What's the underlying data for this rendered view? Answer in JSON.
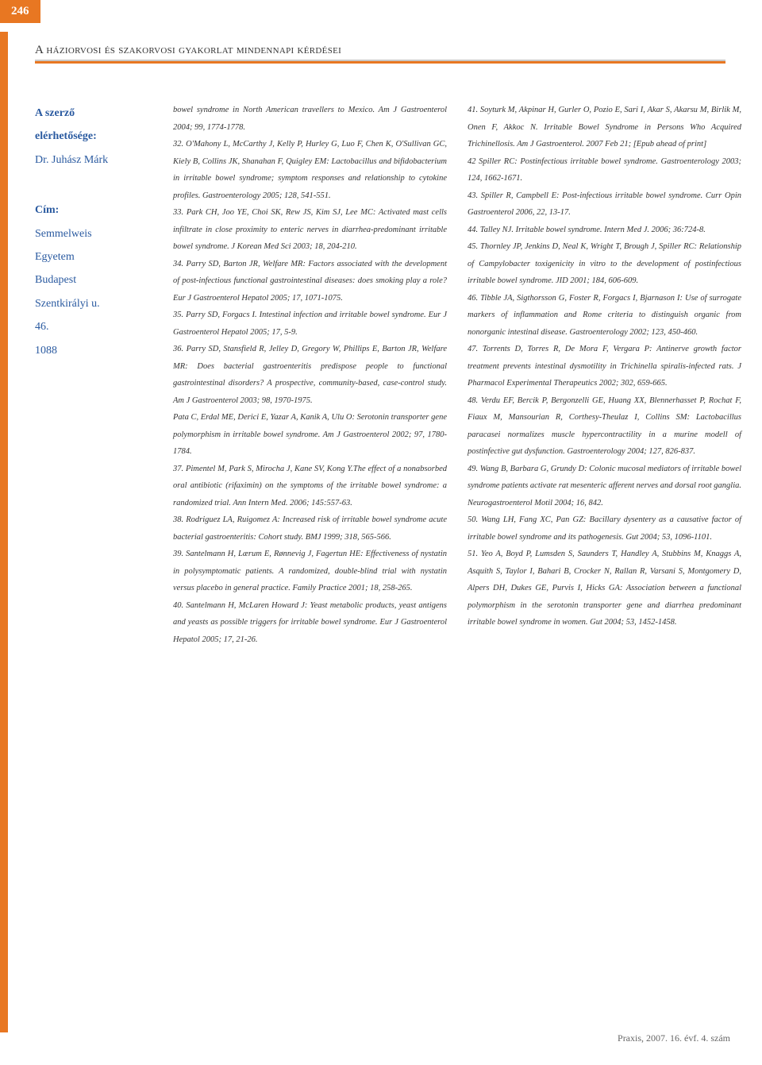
{
  "colors": {
    "accent": "#e87722",
    "link": "#2a5aa0",
    "text": "#333333",
    "grey": "#c8c8c8",
    "bg": "#ffffff"
  },
  "pageNumber": "246",
  "headerTitle": "A háziorvosi és szakorvosi gyakorlat mindennapi kérdései",
  "author": {
    "labelTitle": "A szerző",
    "labelContact": "elérhetősége:",
    "name": "Dr. Juhász Márk",
    "labelAddress": "Cím:",
    "addr1": "Semmelweis",
    "addr2": "Egyetem",
    "addr3": "Budapest",
    "addr4": "Szentkirályi u.",
    "addr5": "46.",
    "addr6": "1088"
  },
  "col1": {
    "p1": "bowel syndrome in North American travellers to Mexico. Am J Gastroenterol 2004; 99, 1774-1778.",
    "p2": "32. O'Mahony L, McCarthy J, Kelly P, Hurley G, Luo F, Chen K, O'Sullivan GC, Kiely B, Collins JK, Shanahan F, Quigley EM: Lactobacillus and bifidobacterium in irritable bowel syndrome; symptom responses and relationship to cytokine profiles. Gastroenterology 2005; 128, 541-551.",
    "p3": "33. Park CH, Joo YE, Choi SK, Rew JS, Kim SJ, Lee MC: Activated mast cells infiltrate in close proximity to enteric nerves in diarrhea-predominant irritable bowel syndrome. J Korean Med Sci 2003; 18, 204-210.",
    "p4": "34. Parry SD, Barton JR, Welfare MR: Factors associated with the development of post-infectious functional gastrointestinal diseases: does smoking play a role? Eur J Gastroenterol Hepatol 2005; 17, 1071-1075.",
    "p5": "35. Parry SD, Forgacs I. Intestinal infection and irritable bowel syndrome. Eur J Gastroenterol Hepatol 2005; 17, 5-9.",
    "p6": "36. Parry SD, Stansfield R, Jelley D, Gregory W, Phillips E, Barton JR, Welfare MR: Does bacterial gastroenteritis predispose people to functional gastrointestinal disorders? A prospective, community-based, case-control study. Am J Gastroenterol 2003; 98, 1970-1975.",
    "p7": "Pata C, Erdal ME, Derici E, Yazar A, Kanik A, Ulu O: Serotonin transporter gene polymorphism in irritable bowel syndrome. Am J Gastroenterol 2002; 97, 1780-1784.",
    "p8": "37. Pimentel M, Park S, Mirocha J, Kane SV, Kong Y.The effect of a nonabsorbed oral antibiotic (rifaximin) on the symptoms of the irritable bowel syndrome: a randomized trial. Ann Intern Med. 2006; 145:557-63.",
    "p9": "38. Rodriguez LA, Ruigomez A: Increased risk of irritable bowel syndrome acute bacterial gastroenteritis: Cohort study. BMJ 1999; 318, 565-566.",
    "p10": "39. Santelmann H, Lærum E, Rønnevig J, Fagertun HE: Effectiveness of nystatin in polysymptomatic patients. A randomized, double-blind trial with nystatin versus placebo in general practice. Family Practice 2001; 18, 258-265.",
    "p11": "40. Santelmann H, McLaren Howard J: Yeast metabolic products, yeast antigens and yeasts as possible triggers for irritable bowel syndrome. Eur J Gastroenterol Hepatol 2005; 17, 21-26."
  },
  "col2": {
    "p1": "41. Soyturk M, Akpinar H, Gurler O, Pozio E, Sari I, Akar S, Akarsu M, Birlik M, Onen F, Akkoc N. Irritable Bowel Syndrome in Persons Who Acquired Trichinellosis. Am J Gastroenterol. 2007 Feb 21; [Epub ahead of print]",
    "p2": "42 Spiller RC: Postinfectious irritable bowel syndrome. Gastroenterology 2003; 124, 1662-1671.",
    "p3": "43. Spiller R, Campbell E: Post-infectious irritable bowel syndrome. Curr Opin Gastroenterol 2006, 22, 13-17.",
    "p4": "44. Talley NJ. Irritable bowel syndrome. Intern Med J. 2006; 36:724-8.",
    "p5": "45. Thornley JP, Jenkins D, Neal K, Wright T, Brough J, Spiller RC: Relationship of Campylobacter toxigenicity in vitro to the development of postinfectious irritable bowel syndrome. JID 2001; 184, 606-609.",
    "p6": "46. Tibble JA, Sigthorsson G, Foster R, Forgacs I, Bjarnason I: Use of surrogate markers of inflammation and Rome criteria to distinguish organic from nonorganic intestinal disease. Gastroenterology 2002; 123, 450-460.",
    "p7": "47. Torrents D, Torres R, De Mora F, Vergara P: Antinerve growth factor treatment prevents intestinal dysmotility in Trichinella spiralis-infected rats. J Pharmacol Experimental Therapeutics 2002; 302, 659-665.",
    "p8": "48. Verdu EF, Bercik P, Bergonzelli GE, Huang XX, Blennerhasset P, Rochat F, Fiaux M, Mansourian R, Corthesy-Theulaz I, Collins SM: Lactobacillus paracasei normalizes muscle hypercontractility in a murine modell of postinfective gut dysfunction. Gastroenterology 2004; 127, 826-837.",
    "p9": "49. Wang B, Barbara G, Grundy D: Colonic mucosal mediators of irritable bowel syndrome patients activate rat mesenteric afferent nerves and dorsal root ganglia. Neurogastroenterol Motil 2004; 16, 842.",
    "p10": "50. Wang LH, Fang XC, Pan GZ: Bacillary dysentery as a causative factor of irritable bowel syndrome and its pathogenesis. Gut 2004; 53, 1096-1101.",
    "p11": "51. Yeo A, Boyd P, Lumsden S, Saunders T, Handley A, Stubbins M, Knaggs A, Asquith S, Taylor I, Bahari B, Crocker N, Rallan R, Varsani S, Montgomery D, Alpers DH, Dukes GE, Purvis I, Hicks GA: Association between a functional polymorphism in the serotonin transporter gene and diarrhea predominant irritable bowel syndrome in women. Gut 2004; 53, 1452-1458."
  },
  "footer": "Praxis, 2007. 16. évf. 4. szám"
}
